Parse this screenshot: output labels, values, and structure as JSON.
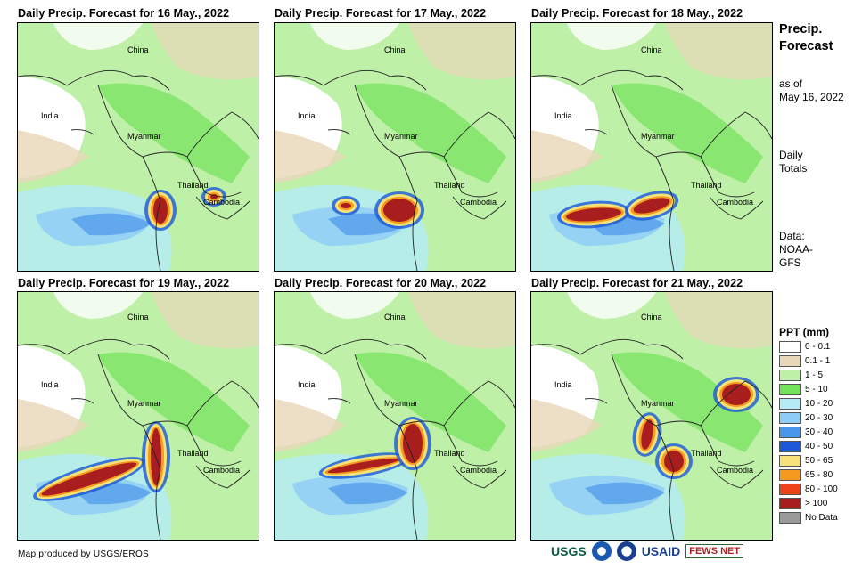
{
  "panels": [
    {
      "title": "Daily Precip. Forecast for 16 May., 2022"
    },
    {
      "title": "Daily Precip. Forecast for 17 May., 2022"
    },
    {
      "title": "Daily Precip. Forecast for 18 May., 2022"
    },
    {
      "title": "Daily Precip. Forecast for 19 May., 2022"
    },
    {
      "title": "Daily Precip. Forecast for 20 May., 2022"
    },
    {
      "title": "Daily Precip. Forecast for 21 May., 2022"
    }
  ],
  "place_labels": {
    "china": "China",
    "india": "India",
    "myanmar": "Myanmar",
    "thailand": "Thailand",
    "cambodia": "Cambodia"
  },
  "sidebar": {
    "title_line1": "Precip.",
    "title_line2": "Forecast",
    "asof_line1": "as of",
    "asof_line2": "May 16, 2022",
    "totals_line1": "Daily",
    "totals_line2": "Totals",
    "data_line1": "Data:",
    "data_line2": "NOAA-",
    "data_line3": "GFS"
  },
  "legend": {
    "title": "PPT (mm)",
    "items": [
      {
        "label": "0 - 0.1",
        "color": "#ffffff"
      },
      {
        "label": "0.1 - 1",
        "color": "#e8d7b8"
      },
      {
        "label": "1 - 5",
        "color": "#bff0a8"
      },
      {
        "label": "5 - 10",
        "color": "#72e25a"
      },
      {
        "label": "10 - 20",
        "color": "#b4ecf5"
      },
      {
        "label": "20 - 30",
        "color": "#8ecbf5"
      },
      {
        "label": "30 - 40",
        "color": "#4a96ea"
      },
      {
        "label": "40 - 50",
        "color": "#1b58d6"
      },
      {
        "label": "50 - 65",
        "color": "#f7e27a"
      },
      {
        "label": "65 - 80",
        "color": "#f59a1e"
      },
      {
        "label": "80 - 100",
        "color": "#f0421a"
      },
      {
        "label": "> 100",
        "color": "#a81e1e"
      },
      {
        "label": "No Data",
        "color": "#9a9a9a"
      }
    ]
  },
  "footer": {
    "credit": "Map produced by USGS/EROS"
  },
  "logos": {
    "usgs": "USGS",
    "usaid": "USAID",
    "fewsnet": "FEWS NET"
  }
}
